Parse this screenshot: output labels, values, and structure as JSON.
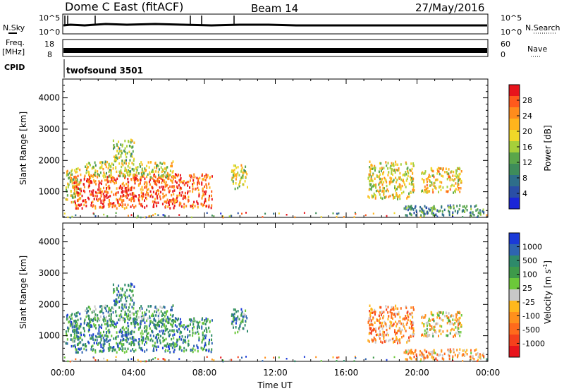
{
  "header": {
    "station": "Dome C East (fitACF)",
    "beam": "Beam 14",
    "date": "27/May/2016"
  },
  "top_panels": {
    "nsky_label": "N.Sky",
    "nsky_ticks": [
      "10^5",
      "10^0"
    ],
    "nsearch_label": "N.Search",
    "nsearch_ticks": [
      "10^5",
      "10^0"
    ],
    "freq_label_line1": "Freq.",
    "freq_label_line2": "[MHz]",
    "freq_ticks": [
      "18",
      "8"
    ],
    "nave_label": "Nave",
    "nave_ticks": [
      "60",
      "0"
    ],
    "cpid_label": "CPID",
    "cpid_value": "twofsound 3501"
  },
  "chart_data": [
    {
      "type": "heatmap",
      "title": "",
      "ylabel": "Slant Range [km]",
      "xlabel": "",
      "x_ticks": [
        "00:00",
        "04:00",
        "08:00",
        "12:00",
        "16:00",
        "20:00",
        "00:00"
      ],
      "xlim_hours": [
        0,
        24
      ],
      "ylim": [
        180,
        4600
      ],
      "y_ticks": [
        1000,
        2000,
        3000,
        4000
      ],
      "colorbar": {
        "label": "Power [dB]",
        "ticks": [
          "28",
          "24",
          "20",
          "16",
          "12",
          "8",
          "4"
        ],
        "colors": [
          "#e8141c",
          "#ff5a1c",
          "#ff8c1c",
          "#ffb41c",
          "#f0d828",
          "#a6cf3a",
          "#5aa64a",
          "#3e8c5a",
          "#2e6e8a",
          "#2a4ea6",
          "#1a26d8"
        ]
      },
      "series": [
        {
          "x_start": 0.1,
          "x_end": 1.0,
          "range_low": 700,
          "range_high": 1800,
          "level": 0.55
        },
        {
          "x_start": 0.6,
          "x_end": 8.4,
          "range_low": 500,
          "range_high": 1600,
          "level": 0.9
        },
        {
          "x_start": 1.2,
          "x_end": 6.2,
          "range_low": 1500,
          "range_high": 2000,
          "level": 0.55
        },
        {
          "x_start": 2.8,
          "x_end": 4.0,
          "range_low": 2000,
          "range_high": 2700,
          "level": 0.45
        },
        {
          "x_start": 9.5,
          "x_end": 10.4,
          "range_low": 1100,
          "range_high": 1900,
          "level": 0.55
        },
        {
          "x_start": 17.2,
          "x_end": 19.8,
          "range_low": 800,
          "range_high": 2000,
          "level": 0.6
        },
        {
          "x_start": 20.2,
          "x_end": 22.5,
          "range_low": 1000,
          "range_high": 1800,
          "level": 0.65
        },
        {
          "x_start": 19.2,
          "x_end": 23.8,
          "range_low": 250,
          "range_high": 600,
          "level": 0.3
        }
      ]
    },
    {
      "type": "heatmap",
      "title": "",
      "ylabel": "Slant Range [km]",
      "xlabel": "Time UT",
      "x_ticks": [
        "00:00",
        "04:00",
        "08:00",
        "12:00",
        "16:00",
        "20:00",
        "00:00"
      ],
      "xlim_hours": [
        0,
        24
      ],
      "ylim": [
        180,
        4600
      ],
      "y_ticks": [
        1000,
        2000,
        3000,
        4000
      ],
      "colorbar": {
        "label": "Velocity [m s^-1]",
        "ticks": [
          "1000",
          "500",
          "100",
          "25",
          "-25",
          "-100",
          "-500",
          "-1000"
        ],
        "colors": [
          "#1a3ad8",
          "#2e64b0",
          "#2e8a6a",
          "#3e9a4a",
          "#6cc83a",
          "#c8c8c8",
          "#ffb81c",
          "#ff901c",
          "#ff6a1c",
          "#f5401c",
          "#e8141c"
        ]
      },
      "series": [
        {
          "x_start": 0.1,
          "x_end": 1.0,
          "range_low": 700,
          "range_high": 1800,
          "level": 0.75
        },
        {
          "x_start": 0.6,
          "x_end": 8.4,
          "range_low": 500,
          "range_high": 1600,
          "level": 0.78
        },
        {
          "x_start": 1.2,
          "x_end": 6.2,
          "range_low": 1500,
          "range_high": 2000,
          "level": 0.7
        },
        {
          "x_start": 2.8,
          "x_end": 4.0,
          "range_low": 2000,
          "range_high": 2700,
          "level": 0.75
        },
        {
          "x_start": 9.5,
          "x_end": 10.4,
          "range_low": 1100,
          "range_high": 1900,
          "level": 0.75
        },
        {
          "x_start": 17.2,
          "x_end": 19.8,
          "range_low": 800,
          "range_high": 2000,
          "level": 0.3
        },
        {
          "x_start": 20.2,
          "x_end": 22.5,
          "range_low": 1000,
          "range_high": 1800,
          "level": 0.45
        },
        {
          "x_start": 19.2,
          "x_end": 23.8,
          "range_low": 250,
          "range_high": 600,
          "level": 0.35
        }
      ]
    }
  ]
}
